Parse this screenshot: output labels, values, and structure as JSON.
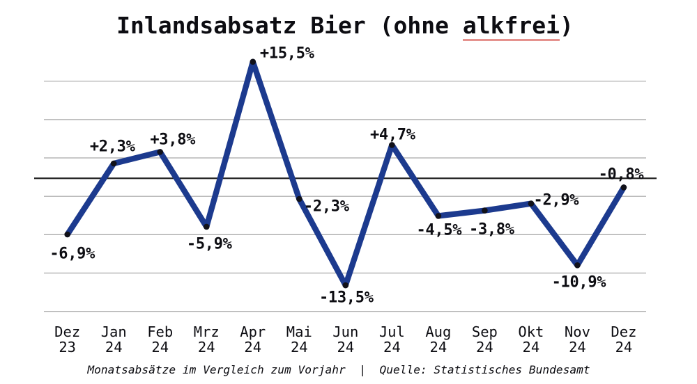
{
  "title": {
    "prefix": "Inlandsabsatz Bier (ohne ",
    "underlined": "alkfrei",
    "suffix": ")"
  },
  "footer": {
    "text": "Monatsabsätze im Vergleich zum Vorjahr  |  Quelle: Statistisches Bundesamt"
  },
  "colors": {
    "background": "#ffffff",
    "text": "#0d0d12",
    "line": "#1c3a8e",
    "marker": "#111119",
    "grid": "#a6a6a6",
    "zero_line": "#1a1a1a",
    "underline": "#e5928e"
  },
  "chart_data": {
    "type": "line",
    "title": "Inlandsabsatz Bier (ohne alkfrei)",
    "unit": "%",
    "categories": [
      "Dez 23",
      "Jan 24",
      "Feb 24",
      "Mrz 24",
      "Apr 24",
      "Mai 24",
      "Jun 24",
      "Jul 24",
      "Aug 24",
      "Sep 24",
      "Okt 24",
      "Nov 24",
      "Dez 24"
    ],
    "category_rows": {
      "months": [
        "Dez",
        "Jan",
        "Feb",
        "Mrz",
        "Apr",
        "Mai",
        "Jun",
        "Jul",
        "Aug",
        "Sep",
        "Okt",
        "Nov",
        "Dez"
      ],
      "years": [
        "23",
        "24",
        "24",
        "24",
        "24",
        "24",
        "24",
        "24",
        "24",
        "24",
        "24",
        "24",
        "24"
      ]
    },
    "values": [
      -6.9,
      2.3,
      3.8,
      -5.9,
      15.5,
      -2.3,
      -13.5,
      4.7,
      -4.5,
      -3.8,
      -2.9,
      -10.9,
      -0.8
    ],
    "point_labels": [
      "-6,9%",
      "+2,3%",
      "+3,8%",
      "-5,9%",
      "+15,5%",
      "-2,3%",
      "-13,5%",
      "+4,7%",
      "-4,5%",
      "-3,8%",
      "-2,9%",
      "-10,9%",
      "-0,8%"
    ],
    "xlabel": "",
    "ylabel": "",
    "ylim": [
      -17.5,
      17.5
    ],
    "grid": true,
    "zero_baseline": true,
    "legend": false,
    "footnote": "Monatsabsätze im Vergleich zum Vorjahr  |  Quelle: Statistisches Bundesamt"
  }
}
